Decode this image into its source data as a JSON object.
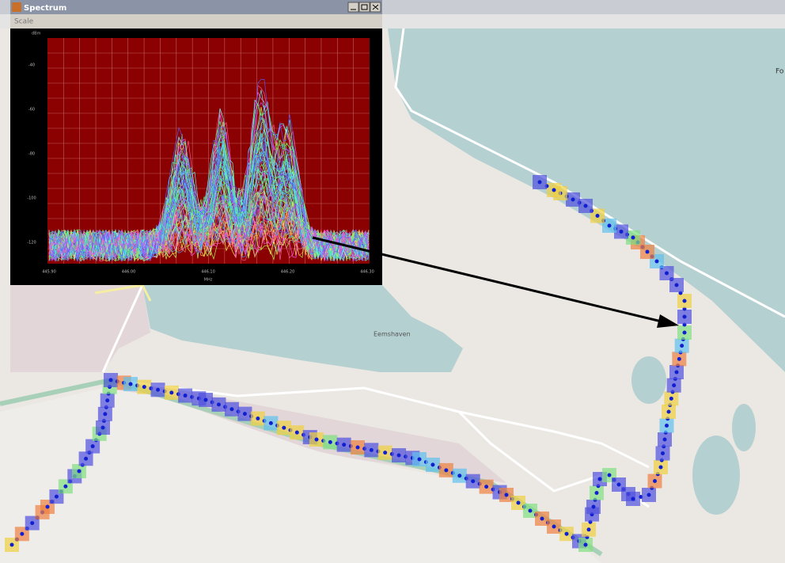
{
  "window": {
    "title": "Spectrum",
    "menu": "Scale",
    "y_axis_label": "dBm",
    "x_axis_label": "MHz",
    "y_ticks": [
      "-40",
      "-60",
      "-80",
      "-100",
      "-120"
    ],
    "x_ticks": [
      "445.90",
      "446.00",
      "446.10",
      "446.20",
      "446.30"
    ]
  },
  "map": {
    "labels": [
      "Eemshaven",
      "Fo"
    ]
  }
}
